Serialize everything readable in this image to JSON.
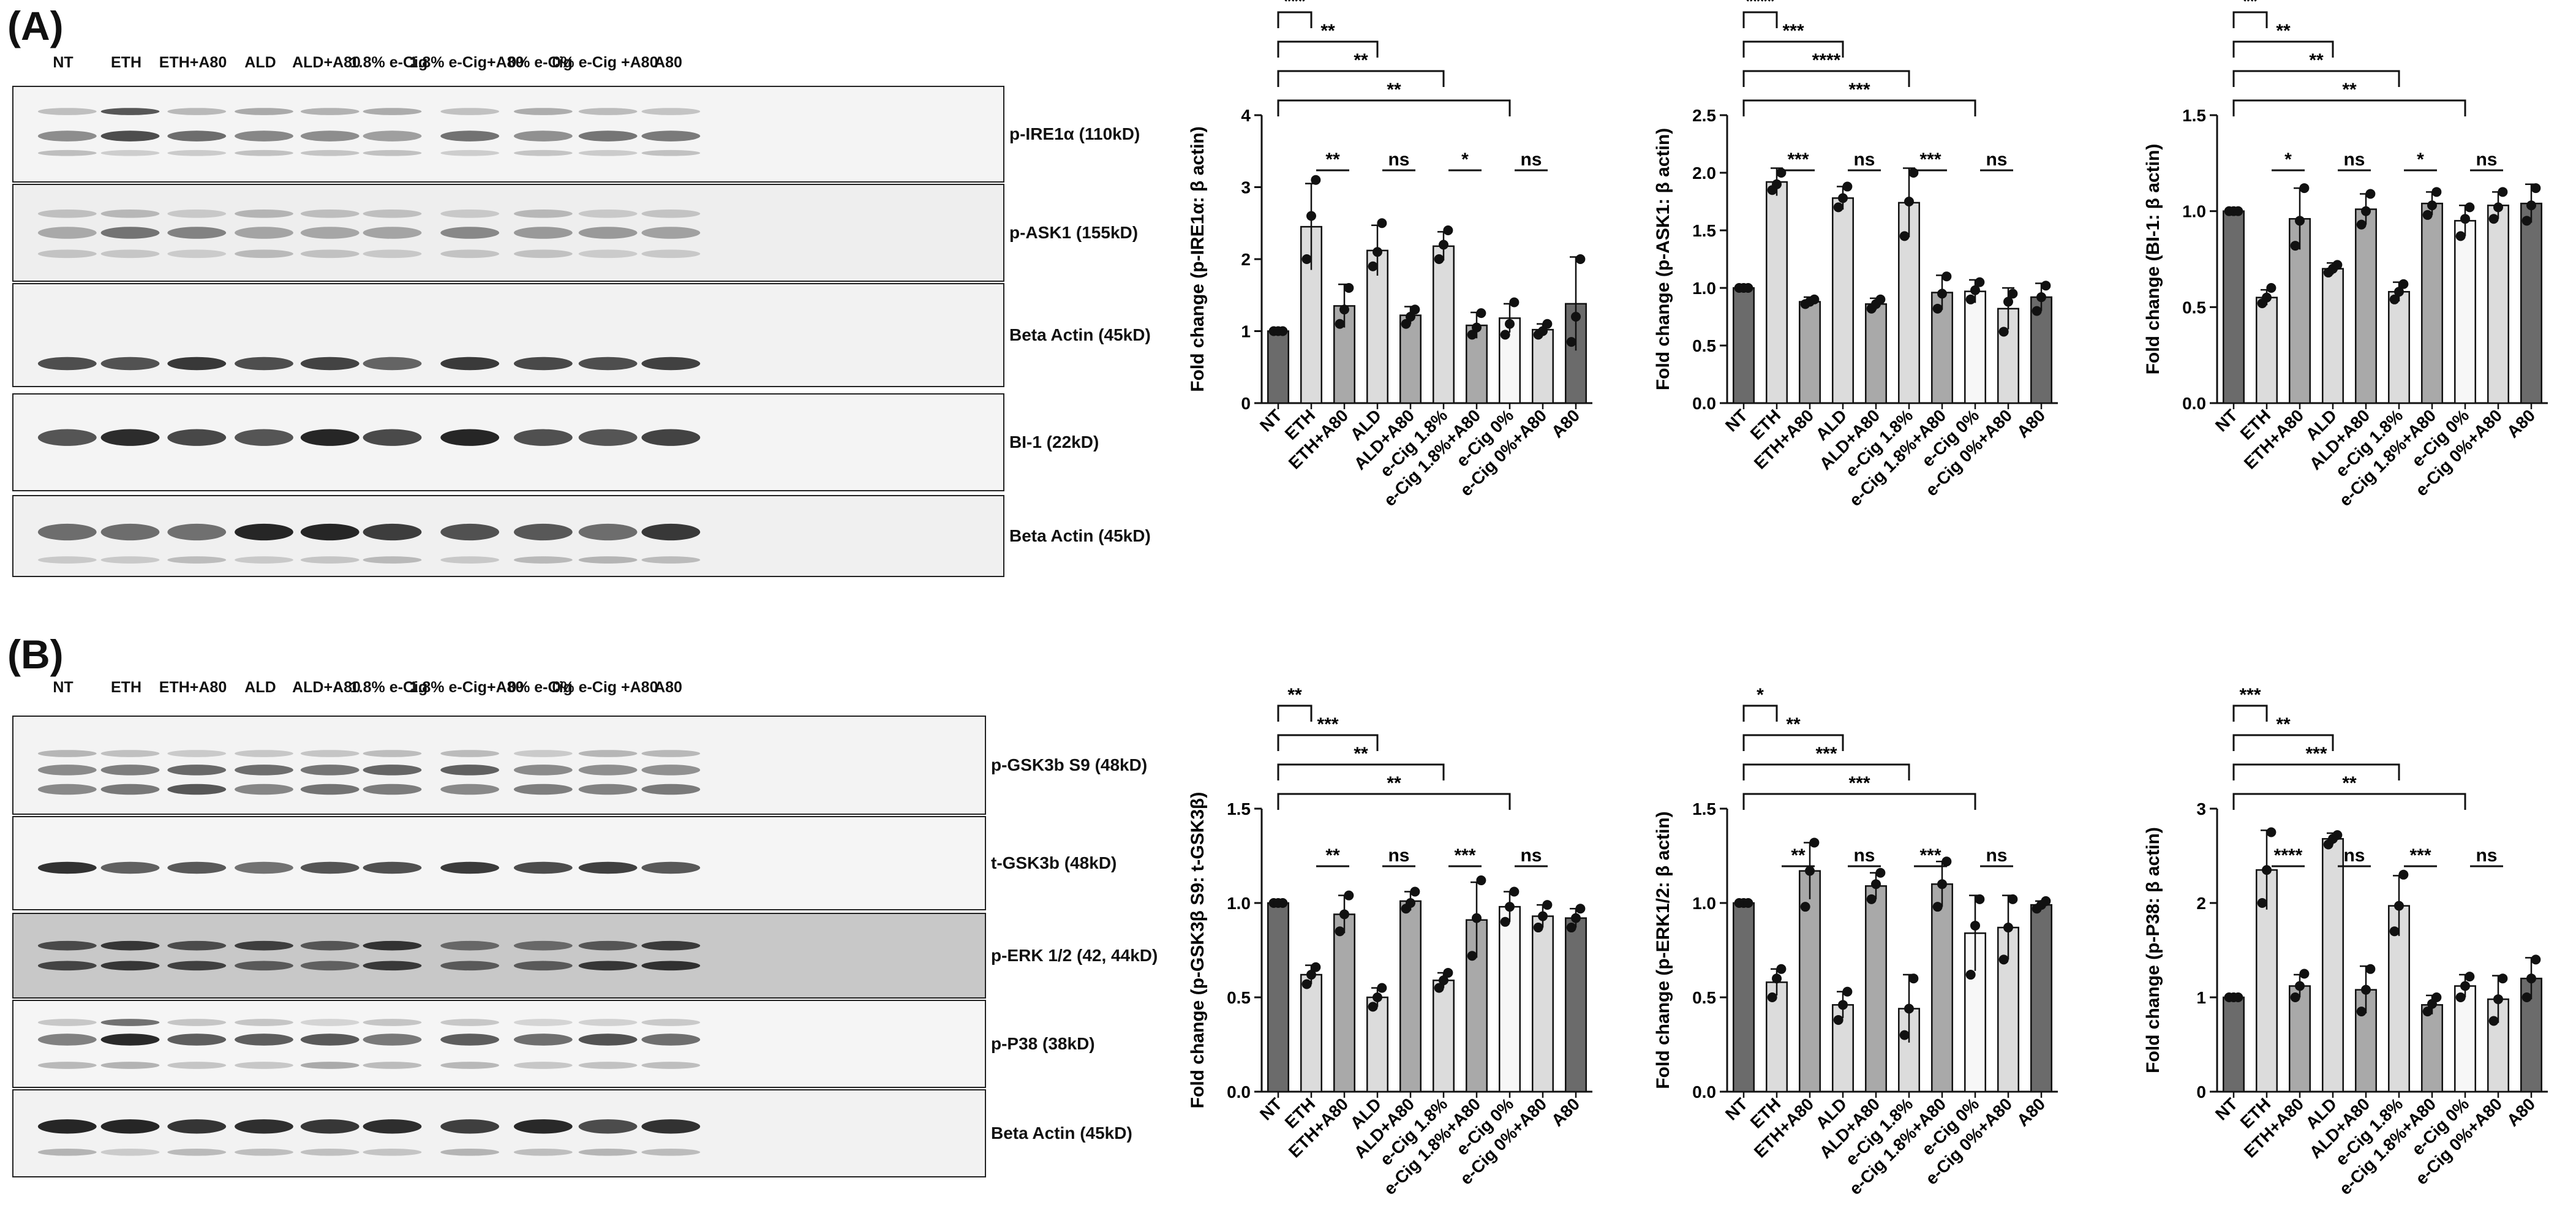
{
  "panels": {
    "A": {
      "letter": "(A)",
      "lanes": [
        "NT",
        "ETH",
        "ETH+A80",
        "ALD",
        "ALD+A80",
        "1.8% e-Cig",
        "1.8% e-Cig+A80",
        "0% e-Cig",
        "0% e-Cig +A80",
        "A80"
      ],
      "blots": [
        "p-IRE1α (110kD)",
        "p-ASK1 (155kD)",
        "Beta Actin (45kD)",
        "BI-1 (22kD)",
        "Beta Actin (45kD)"
      ]
    },
    "B": {
      "letter": "(B)",
      "lanes": [
        "NT",
        "ETH",
        "ETH+A80",
        "ALD",
        "ALD+A80",
        "1.8% e-Cig",
        "1.8% e-Cig+A80",
        "0% e-Cig",
        "0% e-Cig +A80",
        "A80"
      ],
      "blots": [
        "p-GSK3b S9 (48kD)",
        "t-GSK3b (48kD)",
        "p-ERK 1/2 (42, 44kD)",
        "p-P38 (38kD)",
        "Beta Actin (45kD)"
      ]
    }
  },
  "colors": {
    "dark_bar": "#6b6b6b",
    "light_bar": "#dcdcdc",
    "mid_bar": "#a9a9a9",
    "white_bar": "#f7f7f7",
    "gray_blot_bg": "#c8c8c8"
  },
  "chart_data": [
    {
      "type": "bar",
      "ylabel": "Fold change (p-IRE1α: β actin)",
      "ylim": [
        0,
        4
      ],
      "yticks": [
        "0",
        "1",
        "2",
        "3",
        "4"
      ],
      "categories": [
        "NT",
        "ETH",
        "ETH+A80",
        "ALD",
        "ALD+A80",
        "e-Cig 1.8%",
        "e-Cig 1.8%+A80",
        "e-Cig 0%",
        "e-Cig 0%+A80",
        "A80"
      ],
      "values": [
        1.0,
        2.45,
        1.35,
        2.12,
        1.22,
        2.18,
        1.08,
        1.18,
        1.02,
        1.38
      ],
      "errors": [
        0.03,
        0.6,
        0.3,
        0.35,
        0.12,
        0.2,
        0.18,
        0.2,
        0.08,
        0.65
      ],
      "points": [
        [
          1,
          1,
          1
        ],
        [
          2.0,
          2.6,
          3.1
        ],
        [
          1.1,
          1.3,
          1.6
        ],
        [
          1.9,
          2.1,
          2.5
        ],
        [
          1.1,
          1.2,
          1.3
        ],
        [
          2.0,
          2.2,
          2.4
        ],
        [
          0.95,
          1.05,
          1.25
        ],
        [
          0.95,
          1.1,
          1.4
        ],
        [
          0.95,
          1.0,
          1.1
        ],
        [
          0.85,
          1.2,
          2.0
        ]
      ],
      "sig_labels": [
        "***",
        "**",
        "**",
        "ns",
        "**",
        "*",
        "**",
        "ns"
      ]
    },
    {
      "type": "bar",
      "ylabel": "Fold change (p-ASK1: β actin)",
      "ylim": [
        0,
        2.5
      ],
      "yticks": [
        "0.0",
        "0.5",
        "1.0",
        "1.5",
        "2.0",
        "2.5"
      ],
      "categories": [
        "NT",
        "ETH",
        "ETH+A80",
        "ALD",
        "ALD+A80",
        "e-Cig 1.8%",
        "e-Cig 1.8%+A80",
        "e-Cig 0%",
        "e-Cig 0%+A80",
        "A80"
      ],
      "values": [
        1.0,
        1.92,
        0.88,
        1.78,
        0.86,
        1.74,
        0.96,
        0.97,
        0.82,
        0.92
      ],
      "errors": [
        0.02,
        0.12,
        0.04,
        0.1,
        0.05,
        0.3,
        0.15,
        0.1,
        0.18,
        0.12
      ],
      "points": [
        [
          1,
          1,
          1
        ],
        [
          1.85,
          1.9,
          2.0
        ],
        [
          0.86,
          0.88,
          0.9
        ],
        [
          1.7,
          1.78,
          1.88
        ],
        [
          0.82,
          0.86,
          0.9
        ],
        [
          1.45,
          1.75,
          2.0
        ],
        [
          0.82,
          0.95,
          1.1
        ],
        [
          0.9,
          0.98,
          1.05
        ],
        [
          0.62,
          0.88,
          0.95
        ],
        [
          0.8,
          0.92,
          1.02
        ]
      ],
      "sig_labels": [
        "****",
        "***",
        "***",
        "ns",
        "****",
        "***",
        "***",
        "ns"
      ]
    },
    {
      "type": "bar",
      "ylabel": "Fold change (BI-1: β actin)",
      "ylim": [
        0,
        1.5
      ],
      "yticks": [
        "0.0",
        "0.5",
        "1.0",
        "1.5"
      ],
      "categories": [
        "NT",
        "ETH",
        "ETH+A80",
        "ALD",
        "ALD+A80",
        "e-Cig 1.8%",
        "e-Cig 1.8%+A80",
        "e-Cig 0%",
        "e-Cig 0%+A80",
        "A80"
      ],
      "values": [
        1.0,
        0.55,
        0.96,
        0.7,
        1.01,
        0.58,
        1.04,
        0.95,
        1.03,
        1.04
      ],
      "errors": [
        0.01,
        0.04,
        0.16,
        0.03,
        0.08,
        0.05,
        0.06,
        0.08,
        0.07,
        0.1
      ],
      "points": [
        [
          1,
          1,
          1
        ],
        [
          0.52,
          0.55,
          0.6
        ],
        [
          0.82,
          0.95,
          1.12
        ],
        [
          0.68,
          0.7,
          0.72
        ],
        [
          0.93,
          1.0,
          1.09
        ],
        [
          0.54,
          0.58,
          0.62
        ],
        [
          0.98,
          1.03,
          1.1
        ],
        [
          0.87,
          0.96,
          1.02
        ],
        [
          0.96,
          1.02,
          1.1
        ],
        [
          0.95,
          1.03,
          1.12
        ]
      ],
      "sig_labels": [
        "**",
        "*",
        "**",
        "ns",
        "**",
        "*",
        "**",
        "ns"
      ]
    },
    {
      "type": "bar",
      "ylabel": "Fold change (p-GSK3β S9: t-GSK3β)",
      "ylim": [
        0,
        1.5
      ],
      "yticks": [
        "0.0",
        "0.5",
        "1.0",
        "1.5"
      ],
      "categories": [
        "NT",
        "ETH",
        "ETH+A80",
        "ALD",
        "ALD+A80",
        "e-Cig 1.8%",
        "e-Cig 1.8%+A80",
        "e-Cig 0%",
        "e-Cig 0%+A80",
        "A80"
      ],
      "values": [
        1.0,
        0.62,
        0.94,
        0.5,
        1.01,
        0.59,
        0.91,
        0.98,
        0.93,
        0.92
      ],
      "errors": [
        0.01,
        0.05,
        0.1,
        0.05,
        0.05,
        0.04,
        0.2,
        0.08,
        0.06,
        0.05
      ],
      "points": [
        [
          1,
          1,
          1
        ],
        [
          0.57,
          0.62,
          0.66
        ],
        [
          0.85,
          0.94,
          1.04
        ],
        [
          0.45,
          0.5,
          0.55
        ],
        [
          0.97,
          1.0,
          1.06
        ],
        [
          0.55,
          0.59,
          0.63
        ],
        [
          0.72,
          0.92,
          1.12
        ],
        [
          0.9,
          0.98,
          1.06
        ],
        [
          0.87,
          0.93,
          0.99
        ],
        [
          0.87,
          0.92,
          0.97
        ]
      ],
      "sig_labels": [
        "**",
        "**",
        "***",
        "ns",
        "**",
        "***",
        "**",
        "ns"
      ]
    },
    {
      "type": "bar",
      "ylabel": "Fold change (p-ERK1/2: β actin)",
      "ylim": [
        0,
        1.5
      ],
      "yticks": [
        "0.0",
        "0.5",
        "1.0",
        "1.5"
      ],
      "categories": [
        "NT",
        "ETH",
        "ETH+A80",
        "ALD",
        "ALD+A80",
        "e-Cig 1.8%",
        "e-Cig 1.8%+A80",
        "e-Cig 0%",
        "e-Cig 0%+A80",
        "A80"
      ],
      "values": [
        1.0,
        0.58,
        1.17,
        0.46,
        1.09,
        0.44,
        1.1,
        0.84,
        0.87,
        0.99
      ],
      "errors": [
        0.01,
        0.07,
        0.15,
        0.07,
        0.07,
        0.18,
        0.12,
        0.2,
        0.17,
        0.02
      ],
      "points": [
        [
          1,
          1,
          1
        ],
        [
          0.5,
          0.6,
          0.65
        ],
        [
          0.98,
          1.17,
          1.32
        ],
        [
          0.38,
          0.46,
          0.53
        ],
        [
          1.02,
          1.1,
          1.16
        ],
        [
          0.3,
          0.44,
          0.6
        ],
        [
          0.98,
          1.1,
          1.22
        ],
        [
          0.62,
          0.88,
          1.02
        ],
        [
          0.7,
          0.87,
          1.02
        ],
        [
          0.97,
          0.99,
          1.01
        ]
      ],
      "sig_labels": [
        "*",
        "**",
        "**",
        "ns",
        "***",
        "***",
        "***",
        "ns"
      ]
    },
    {
      "type": "bar",
      "ylabel": "Fold change (p-P38: β actin)",
      "ylim": [
        0,
        3
      ],
      "yticks": [
        "0",
        "1",
        "2",
        "3"
      ],
      "categories": [
        "NT",
        "ETH",
        "ETH+A80",
        "ALD",
        "ALD+A80",
        "e-Cig 1.8%",
        "e-Cig 1.8%+A80",
        "e-Cig 0%",
        "e-Cig 0%+A80",
        "A80"
      ],
      "values": [
        1.0,
        2.35,
        1.12,
        2.68,
        1.08,
        1.97,
        0.92,
        1.12,
        0.98,
        1.2
      ],
      "errors": [
        0.01,
        0.42,
        0.12,
        0.06,
        0.25,
        0.32,
        0.1,
        0.12,
        0.25,
        0.22
      ],
      "points": [
        [
          1,
          1,
          1
        ],
        [
          2.0,
          2.35,
          2.75
        ],
        [
          1.0,
          1.12,
          1.25
        ],
        [
          2.62,
          2.68,
          2.72
        ],
        [
          0.85,
          1.08,
          1.3
        ],
        [
          1.7,
          1.97,
          2.3
        ],
        [
          0.85,
          0.93,
          1.0
        ],
        [
          1.0,
          1.12,
          1.22
        ],
        [
          0.75,
          0.98,
          1.2
        ],
        [
          1.0,
          1.2,
          1.4
        ]
      ],
      "sig_labels": [
        "***",
        "****",
        "**",
        "ns",
        "***",
        "***",
        "**",
        "ns"
      ]
    }
  ]
}
